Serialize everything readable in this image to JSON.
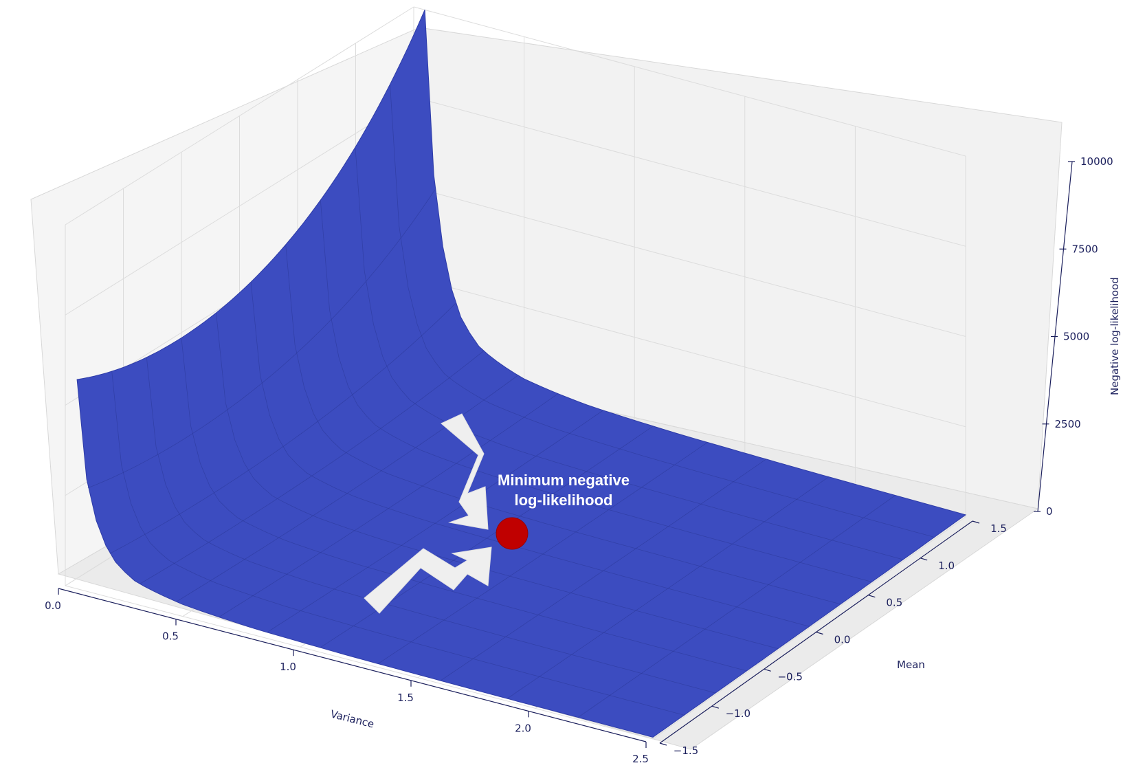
{
  "chart_data": {
    "type": "surface",
    "title": "",
    "xlabel": "Variance",
    "ylabel": "Mean",
    "zlabel": "Negative log-likelihood",
    "x_ticks": [
      "0.0",
      "0.5",
      "1.0",
      "1.5",
      "2.0",
      "2.5"
    ],
    "y_ticks": [
      "−1.5",
      "−1.0",
      "−0.5",
      "0.0",
      "0.5",
      "1.0",
      "1.5"
    ],
    "z_ticks": [
      "0",
      "2500",
      "5000",
      "7500",
      "10000"
    ],
    "xlim": [
      0,
      2.5
    ],
    "ylim": [
      -1.5,
      1.5
    ],
    "zlim": [
      0,
      10000
    ],
    "grid": true,
    "surface_color": "#3c4cc0",
    "pane_color": "#f2f2f2",
    "edge_profile": {
      "variance": [
        0.05,
        0.1,
        0.2,
        0.3,
        0.5,
        0.8,
        1.2,
        1.8,
        2.5
      ],
      "nll_at_mean_min": [
        5800,
        2700,
        1100,
        620,
        330,
        180,
        110,
        70,
        50
      ],
      "nll_at_mean_max": [
        10000,
        4800,
        1900,
        1050,
        520,
        260,
        150,
        90,
        60
      ]
    },
    "annotation": {
      "text_lines": [
        "Minimum negative",
        "log-likelihood"
      ],
      "marker_color": "#c00000",
      "arrow_color": "#efefef"
    }
  }
}
